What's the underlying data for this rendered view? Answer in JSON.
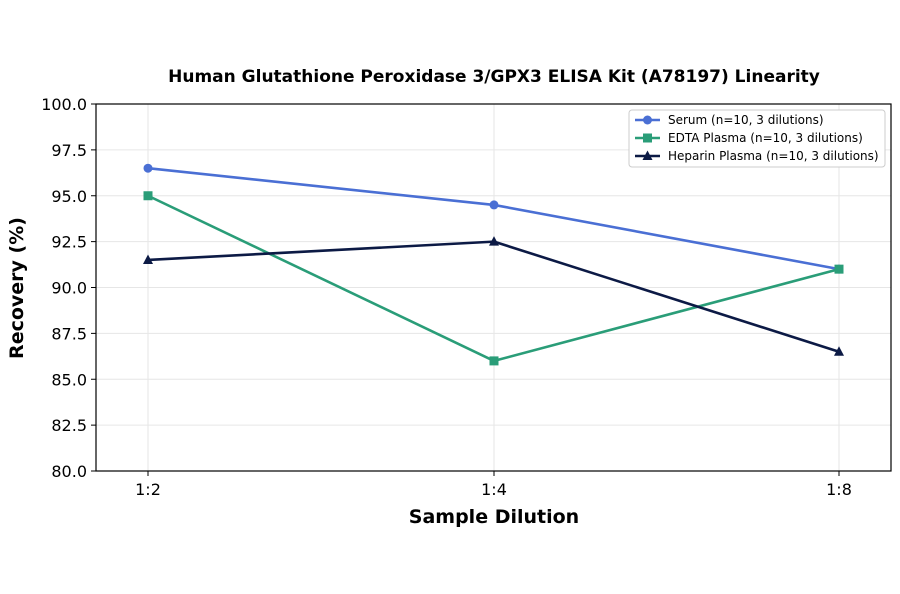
{
  "chart_data": {
    "type": "line",
    "title": "Human Glutathione Peroxidase 3/GPX3 ELISA Kit (A78197) Linearity",
    "xlabel": "Sample Dilution",
    "ylabel": "Recovery (%)",
    "categories": [
      "1:2",
      "1:4",
      "1:8"
    ],
    "ylim": [
      80.0,
      100.0
    ],
    "yticks": [
      "80.0",
      "82.5",
      "85.0",
      "87.5",
      "90.0",
      "92.5",
      "95.0",
      "97.5",
      "100.0"
    ],
    "grid": true,
    "legend_position": "top-right",
    "series": [
      {
        "name": "Serum (n=10, 3 dilutions)",
        "values": [
          96.5,
          94.5,
          91.0
        ],
        "color": "#4a6fd4",
        "marker": "circle"
      },
      {
        "name": "EDTA Plasma (n=10, 3 dilutions)",
        "values": [
          95.0,
          86.0,
          91.0
        ],
        "color": "#2a9d78",
        "marker": "square"
      },
      {
        "name": "Heparin Plasma (n=10, 3 dilutions)",
        "values": [
          91.5,
          92.5,
          86.5
        ],
        "color": "#0c1a45",
        "marker": "triangle"
      }
    ]
  }
}
